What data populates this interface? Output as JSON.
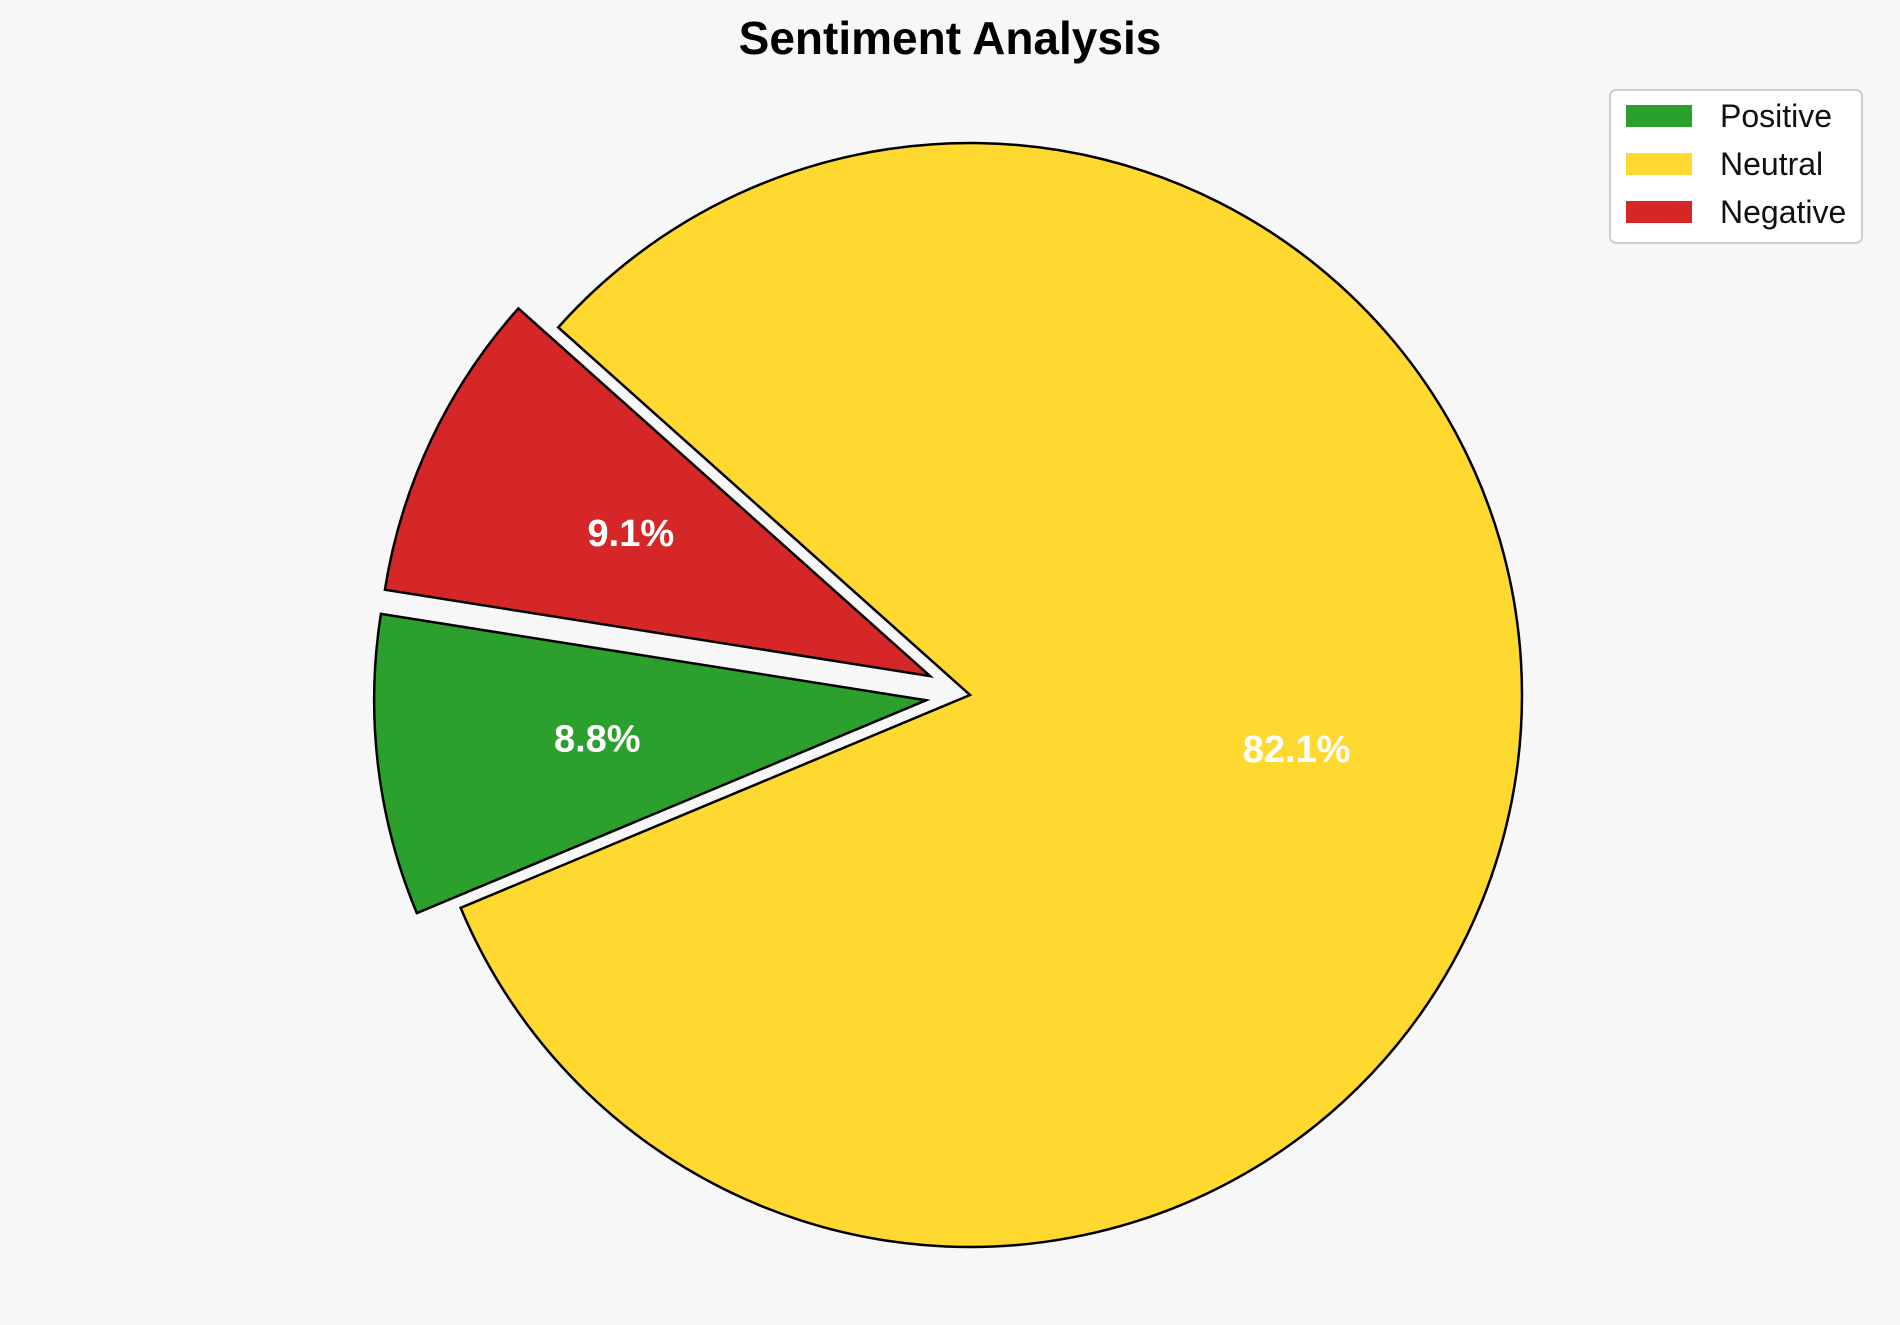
{
  "chart_data": {
    "type": "pie",
    "title": "Sentiment Analysis",
    "start_angle_deg": 171,
    "direction": "counterclockwise",
    "legend_position": "top-right",
    "slices": [
      {
        "label": "Positive",
        "value": 8.8,
        "display": "8.8%",
        "color": "#2ca02c",
        "exploded": true
      },
      {
        "label": "Neutral",
        "value": 82.1,
        "display": "82.1%",
        "color": "#ffd92f",
        "exploded": false
      },
      {
        "label": "Negative",
        "value": 9.1,
        "display": "9.1%",
        "color": "#d62728",
        "exploded": true
      }
    ]
  }
}
